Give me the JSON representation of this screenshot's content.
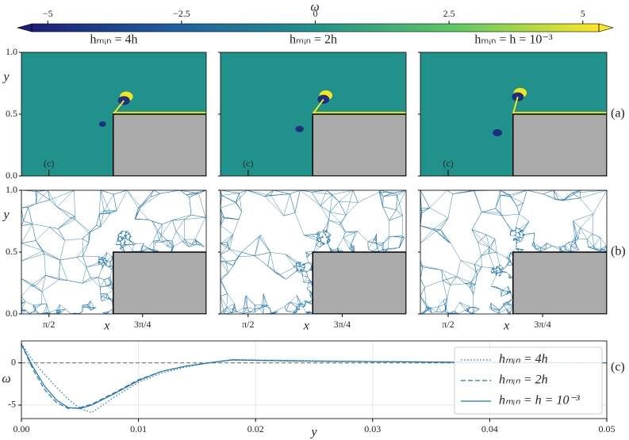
{
  "chart_data": [
    {
      "type": "colorbar",
      "label": "ω",
      "colormap": "viridis",
      "xlim": [
        -5.3,
        5.3
      ],
      "xticks": [
        {
          "value": -5,
          "label": "−5"
        },
        {
          "value": -2.5,
          "label": "−2.5"
        },
        0,
        2.5,
        5
      ]
    },
    {
      "type": "field",
      "titles": [
        "hₘᵢₙ = 4h",
        "hₘᵢₙ = 2h",
        "hₘᵢₙ = h = 10⁻³"
      ],
      "panel_label": "(a)",
      "ylabel": "y",
      "marker_label": "(c)",
      "xlim": [
        1.34,
        2.89
      ],
      "ylim": [
        0,
        1
      ],
      "yticks": [
        {
          "value": 0,
          "label": "0.0"
        },
        {
          "value": 0.5,
          "label": "0.5"
        },
        {
          "value": 1,
          "label": "1.0"
        }
      ]
    },
    {
      "type": "mesh",
      "panel_label": "(b)",
      "xlabel": "x",
      "ylabel": "y",
      "xlim": [
        1.34,
        2.89
      ],
      "ylim": [
        0,
        1
      ],
      "xticks": [
        {
          "value": 1.5708,
          "label": "π/2"
        },
        {
          "value": 2.3562,
          "label": "3π/4"
        }
      ],
      "yticks": [
        {
          "value": 0,
          "label": "0.0"
        },
        {
          "value": 0.5,
          "label": "0.5"
        },
        {
          "value": 1,
          "label": "1.0"
        }
      ]
    },
    {
      "type": "line",
      "panel_label": "(c)",
      "xlabel": "y",
      "ylabel": "ω",
      "legend": "upper right",
      "grid": true,
      "hline": 0,
      "x": [
        0,
        0.001,
        0.002,
        0.003,
        0.004,
        0.005,
        0.006,
        0.008,
        0.01,
        0.012,
        0.014,
        0.016,
        0.018,
        0.02,
        0.025,
        0.03,
        0.035,
        0.04,
        0.045,
        0.05
      ],
      "series": [
        {
          "name": "hₘᵢₙ = 4h",
          "color": "#1f77b4",
          "linestyle": "dotted",
          "values": [
            2.3,
            0.2,
            -1.4,
            -2.9,
            -4.3,
            -5.4,
            -5.9,
            -4.0,
            -2.3,
            -1.2,
            -0.5,
            0.0,
            0.4,
            0.35,
            0.25,
            0.15,
            0.1,
            0.05,
            0.02,
            0.0
          ]
        },
        {
          "name": "hₘᵢₙ = 2h",
          "color": "#1f77b4",
          "linestyle": "dashed",
          "values": [
            2.2,
            -0.8,
            -3.2,
            -4.7,
            -5.4,
            -5.3,
            -4.9,
            -3.5,
            -2.0,
            -1.0,
            -0.4,
            0.0,
            0.35,
            0.3,
            0.2,
            0.15,
            0.1,
            0.05,
            0.02,
            0.0
          ]
        },
        {
          "name": "hₘᵢₙ = h = 10⁻³",
          "color": "#1f77b4",
          "linestyle": "solid",
          "values": [
            2.2,
            -0.5,
            -2.8,
            -4.4,
            -5.3,
            -5.4,
            -5.0,
            -3.6,
            -2.1,
            -1.0,
            -0.4,
            0.0,
            0.35,
            0.3,
            0.2,
            0.15,
            0.1,
            0.05,
            0.02,
            0.0
          ]
        }
      ],
      "xlim": [
        0,
        0.05
      ],
      "xticks": [
        {
          "value": 0,
          "label": "0.00"
        },
        {
          "value": 0.01,
          "label": "0.01"
        },
        {
          "value": 0.02,
          "label": "0.02"
        },
        {
          "value": 0.03,
          "label": "0.03"
        },
        {
          "value": 0.04,
          "label": "0.04"
        },
        {
          "value": 0.05,
          "label": "0.05"
        }
      ],
      "ylim": [
        -6.6,
        2.6
      ],
      "yticks": [
        -5,
        0
      ]
    }
  ]
}
